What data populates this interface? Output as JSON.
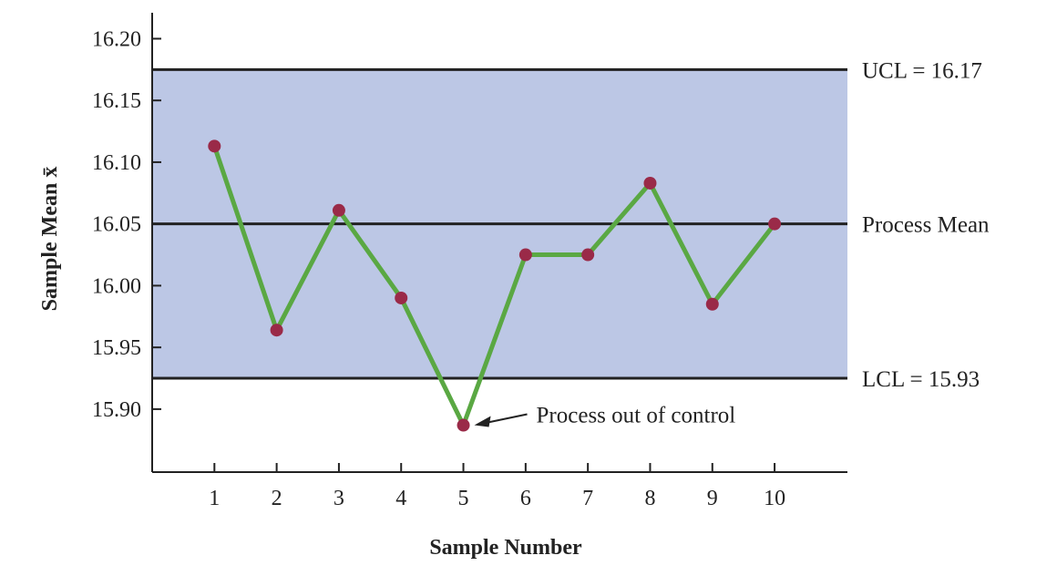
{
  "chart_data": {
    "type": "line",
    "title": "",
    "xlabel": "Sample Number",
    "ylabel": "Sample Mean x̄",
    "x": [
      1,
      2,
      3,
      4,
      5,
      6,
      7,
      8,
      9,
      10
    ],
    "series": [
      {
        "name": "Sample Mean",
        "values": [
          16.113,
          15.964,
          16.061,
          15.99,
          15.887,
          16.025,
          16.025,
          16.083,
          15.985,
          16.05
        ]
      }
    ],
    "xlim": [
      0,
      11.17
    ],
    "ylim": [
      15.849,
      16.221
    ],
    "yticks": [
      "16.20",
      "16.15",
      "16.10",
      "16.05",
      "16.00",
      "15.95",
      "15.90"
    ],
    "xticks": [
      "1",
      "2",
      "3",
      "4",
      "5",
      "6",
      "7",
      "8",
      "9",
      "10"
    ],
    "control_lines": [
      {
        "name": "UCL",
        "value": 16.175,
        "label": "UCL = 16.17"
      },
      {
        "name": "mean",
        "value": 16.05,
        "label": "Process Mean"
      },
      {
        "name": "LCL",
        "value": 15.925,
        "label": "LCL = 15.93"
      }
    ],
    "annotation": {
      "text": "Process out of control",
      "x": 5,
      "y": 15.887
    },
    "colors": {
      "band": "#bcc7e5",
      "line": "#5aa843",
      "marker": "#9a2a48",
      "axis": "#222222"
    }
  }
}
